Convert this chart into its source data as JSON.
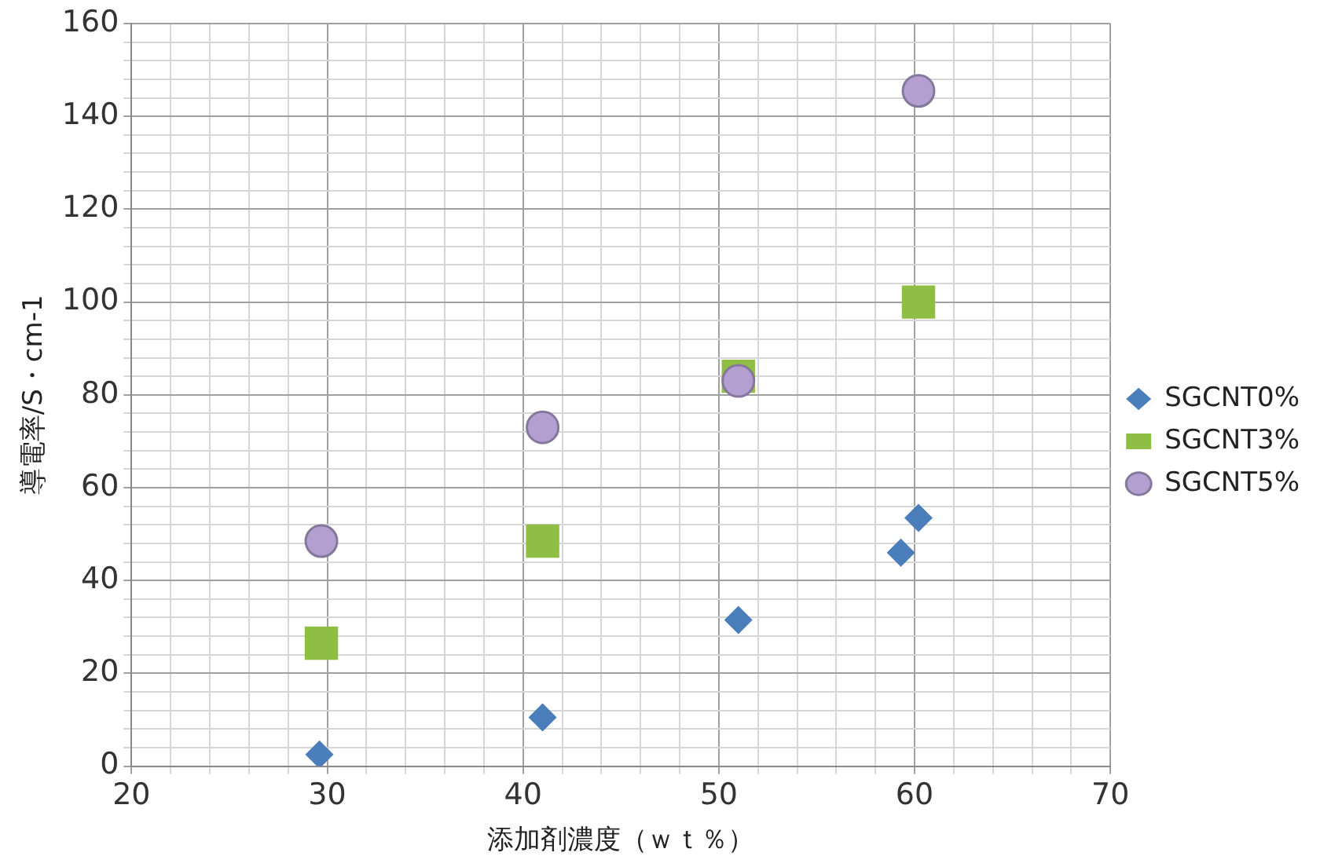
{
  "chart_data": {
    "type": "scatter",
    "xlabel": "添加剤濃度（ｗｔ％）",
    "ylabel": "導電率/S・cm-1",
    "xlim": [
      20,
      70
    ],
    "ylim": [
      0,
      160
    ],
    "xticks": [
      20,
      {
        "value": 22,
        "label": null
      },
      {
        "value": 24,
        "label": null
      },
      {
        "value": 26,
        "label": null
      },
      {
        "value": 28,
        "label": null
      },
      30,
      {
        "value": 32,
        "label": null
      },
      {
        "value": 34,
        "label": null
      },
      {
        "value": 36,
        "label": null
      },
      {
        "value": 38,
        "label": null
      },
      40,
      {
        "value": 42,
        "label": null
      },
      {
        "value": 44,
        "label": null
      },
      {
        "value": 46,
        "label": null
      },
      {
        "value": 48,
        "label": null
      },
      50,
      {
        "value": 52,
        "label": null
      },
      {
        "value": 54,
        "label": null
      },
      {
        "value": 56,
        "label": null
      },
      {
        "value": 58,
        "label": null
      },
      60,
      {
        "value": 62,
        "label": null
      },
      {
        "value": 64,
        "label": null
      },
      {
        "value": 66,
        "label": null
      },
      {
        "value": 68,
        "label": null
      },
      70
    ],
    "yticks": [
      0,
      {
        "value": 4,
        "label": null
      },
      {
        "value": 8,
        "label": null
      },
      {
        "value": 12,
        "label": null
      },
      {
        "value": 16,
        "label": null
      },
      20,
      {
        "value": 24,
        "label": null
      },
      {
        "value": 28,
        "label": null
      },
      {
        "value": 32,
        "label": null
      },
      {
        "value": 36,
        "label": null
      },
      40,
      {
        "value": 44,
        "label": null
      },
      {
        "value": 48,
        "label": null
      },
      {
        "value": 52,
        "label": null
      },
      {
        "value": 56,
        "label": null
      },
      60,
      {
        "value": 64,
        "label": null
      },
      {
        "value": 68,
        "label": null
      },
      {
        "value": 72,
        "label": null
      },
      {
        "value": 76,
        "label": null
      },
      80,
      {
        "value": 84,
        "label": null
      },
      {
        "value": 88,
        "label": null
      },
      {
        "value": 92,
        "label": null
      },
      {
        "value": 96,
        "label": null
      },
      100,
      {
        "value": 104,
        "label": null
      },
      {
        "value": 108,
        "label": null
      },
      {
        "value": 112,
        "label": null
      },
      {
        "value": 116,
        "label": null
      },
      120,
      {
        "value": 124,
        "label": null
      },
      {
        "value": 128,
        "label": null
      },
      {
        "value": 132,
        "label": null
      },
      {
        "value": 136,
        "label": null
      },
      140,
      {
        "value": 144,
        "label": null
      },
      {
        "value": 148,
        "label": null
      },
      {
        "value": 152,
        "label": null
      },
      {
        "value": 156,
        "label": null
      },
      160
    ],
    "grid": true,
    "legend": "right",
    "series": [
      {
        "name": "SGCNT0%",
        "color": "#4a7ebb",
        "marker": "diamond",
        "x": [
          29.6,
          41.0,
          51.0,
          59.3,
          60.2
        ],
        "values": [
          2.5,
          10.5,
          31.5,
          46,
          53.5
        ]
      },
      {
        "name": "SGCNT3%",
        "color": "#8fbe45",
        "marker": "square",
        "x": [
          29.7,
          41.0,
          51.0,
          60.2
        ],
        "values": [
          26.5,
          48.5,
          84,
          100
        ]
      },
      {
        "name": "SGCNT5%",
        "color": "#b39fd0",
        "marker": "circle",
        "x": [
          29.7,
          41.0,
          51.0,
          60.2
        ],
        "values": [
          48.5,
          73,
          83,
          145.5
        ]
      }
    ]
  }
}
